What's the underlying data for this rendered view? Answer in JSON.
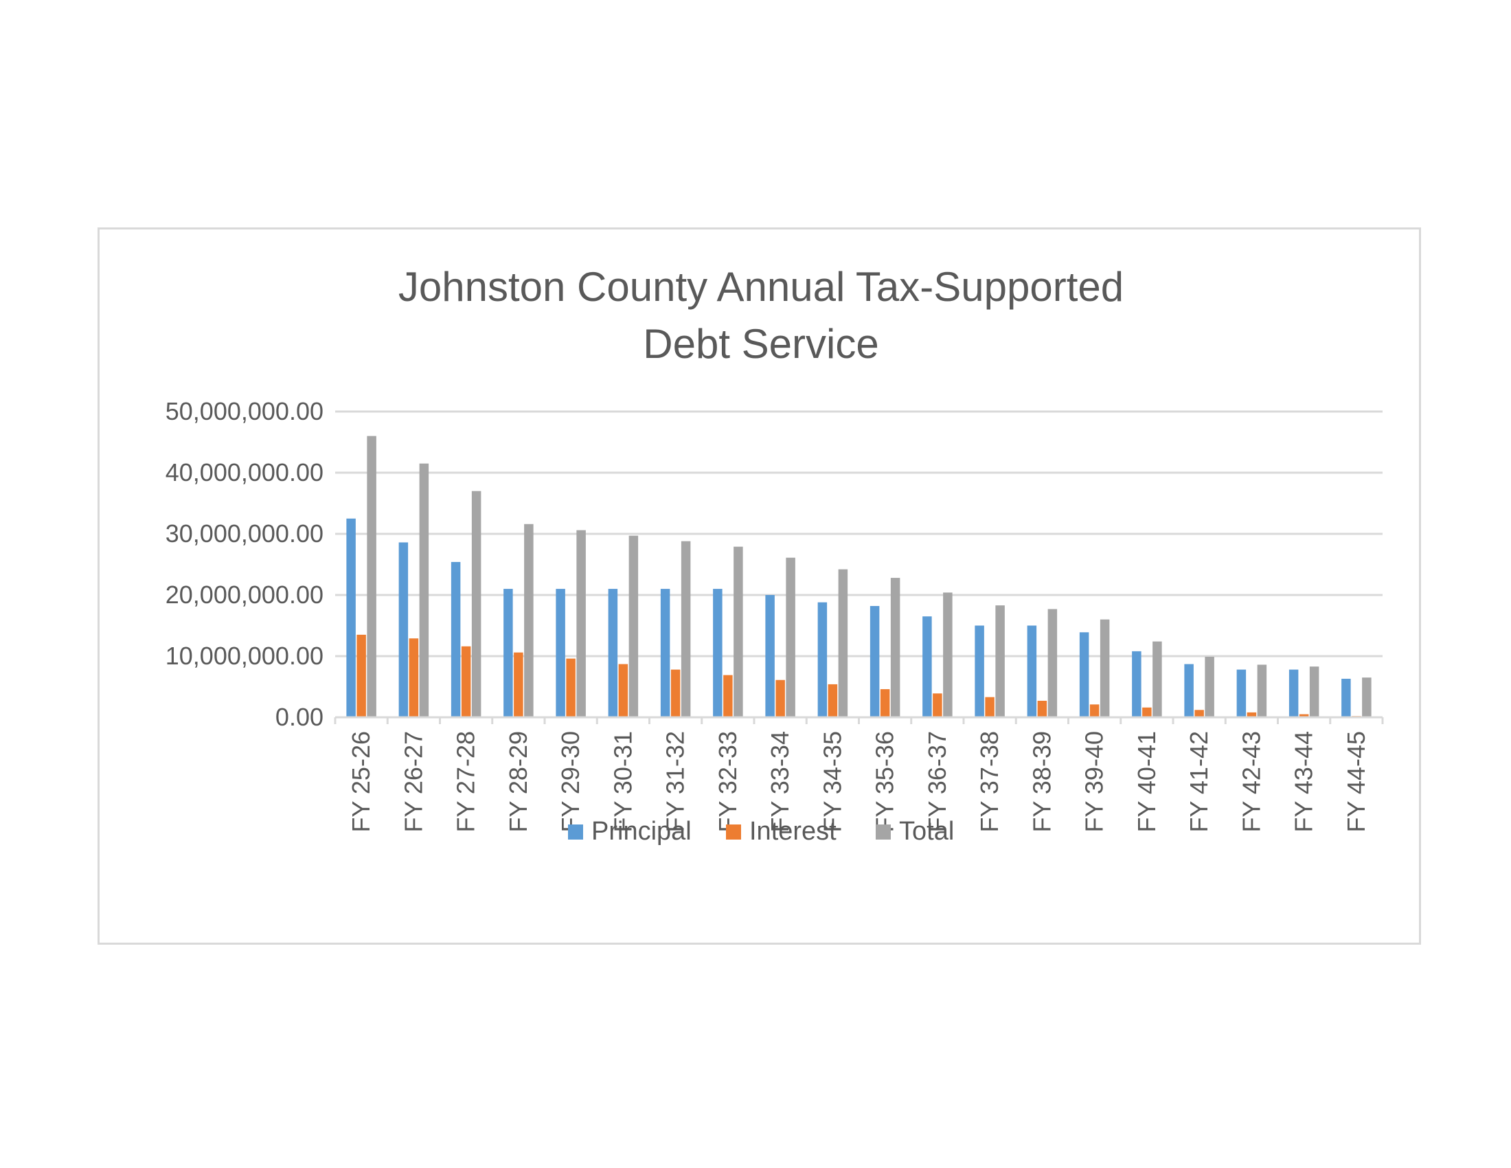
{
  "chart_data": {
    "type": "bar",
    "title_lines": [
      "Johnston County Annual Tax-Supported",
      "Debt Service"
    ],
    "categories": [
      "FY 25-26",
      "FY 26-27",
      "FY 27-28",
      "FY 28-29",
      "FY 29-30",
      "FY 30-31",
      "FY 31-32",
      "FY 32-33",
      "FY 33-34",
      "FY 34-35",
      "FY 35-36",
      "FY 36-37",
      "FY 37-38",
      "FY 38-39",
      "FY 39-40",
      "FY 40-41",
      "FY 41-42",
      "FY 42-43",
      "FY 43-44",
      "FY 44-45"
    ],
    "series": [
      {
        "name": "Principal",
        "color": "#5b9bd5",
        "values": [
          32500000,
          28600000,
          25400000,
          21000000,
          21000000,
          21000000,
          21000000,
          21000000,
          20000000,
          18800000,
          18200000,
          16500000,
          15000000,
          15000000,
          13900000,
          10800000,
          8700000,
          7800000,
          7800000,
          6300000
        ]
      },
      {
        "name": "Interest",
        "color": "#ed7d31",
        "values": [
          13500000,
          12900000,
          11600000,
          10600000,
          9600000,
          8700000,
          7800000,
          6900000,
          6100000,
          5400000,
          4600000,
          3900000,
          3300000,
          2700000,
          2100000,
          1600000,
          1200000,
          800000,
          500000,
          200000
        ]
      },
      {
        "name": "Total",
        "color": "#a5a5a5",
        "values": [
          46000000,
          41500000,
          37000000,
          31600000,
          30600000,
          29700000,
          28800000,
          27900000,
          26100000,
          24200000,
          22800000,
          20400000,
          18300000,
          17700000,
          16000000,
          12400000,
          9900000,
          8600000,
          8300000,
          6500000
        ]
      }
    ],
    "y_ticks": [
      "0.00",
      "10,000,000.00",
      "20,000,000.00",
      "30,000,000.00",
      "40,000,000.00",
      "50,000,000.00"
    ],
    "ylim": [
      0,
      50000000
    ],
    "grid": true,
    "legend_position": "bottom"
  }
}
